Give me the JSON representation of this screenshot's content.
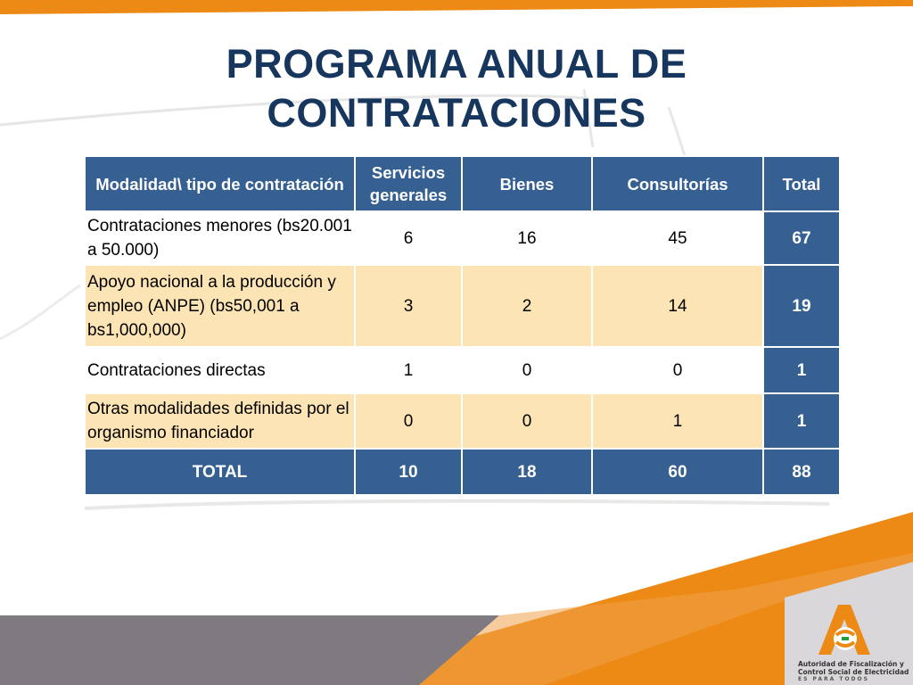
{
  "colors": {
    "title": "#17365d",
    "header_blue": "#366092",
    "highlight_row": "#fce4b4",
    "orange": "#ec8a15",
    "gray": "#7f7a80"
  },
  "slide": {
    "title_line1": "PROGRAMA ANUAL DE",
    "title_line2": "CONTRATACIONES"
  },
  "table": {
    "headers": [
      "Modalidad\\ tipo de contratación",
      "Servicios generales",
      "Bienes",
      "Consultorías",
      "Total"
    ],
    "rows": [
      {
        "modalidad": "Contrataciones menores (bs20.001 a 50.000)",
        "servicios": "6",
        "bienes": "16",
        "consultorias": "45",
        "total": "67"
      },
      {
        "modalidad": "Apoyo nacional a la producción y empleo (ANPE) (bs50,001 a bs1,000,000)",
        "servicios": "3",
        "bienes": "2",
        "consultorias": "14",
        "total": "19"
      },
      {
        "modalidad": "Contrataciones directas",
        "servicios": "1",
        "bienes": "0",
        "consultorias": "0",
        "total": "1"
      },
      {
        "modalidad": "Otras modalidades definidas por el organismo financiador",
        "servicios": "0",
        "bienes": "0",
        "consultorias": "1",
        "total": "1"
      }
    ],
    "total_row": {
      "label": "TOTAL",
      "servicios": "10",
      "bienes": "18",
      "consultorias": "60",
      "total": "88"
    }
  },
  "logo": {
    "icon": "ae-logo-icon",
    "line1": "Autoridad de Fiscalización y",
    "line2": "Control Social de Electricidad",
    "line3": "ES PARA TODOS"
  }
}
